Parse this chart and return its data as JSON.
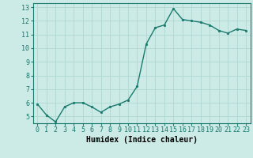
{
  "x": [
    0,
    1,
    2,
    3,
    4,
    5,
    6,
    7,
    8,
    9,
    10,
    11,
    12,
    13,
    14,
    15,
    16,
    17,
    18,
    19,
    20,
    21,
    22,
    23
  ],
  "y": [
    5.9,
    5.1,
    4.6,
    5.7,
    6.0,
    6.0,
    5.7,
    5.3,
    5.7,
    5.9,
    6.2,
    7.2,
    10.3,
    11.5,
    11.7,
    12.9,
    12.1,
    12.0,
    11.9,
    11.7,
    11.3,
    11.1,
    11.4,
    11.3
  ],
  "line_color": "#1a7a6e",
  "bg_color": "#cceae6",
  "grid_color": "#b0d8d4",
  "xlabel": "Humidex (Indice chaleur)",
  "xlim": [
    -0.5,
    23.5
  ],
  "ylim": [
    4.5,
    13.3
  ],
  "yticks": [
    5,
    6,
    7,
    8,
    9,
    10,
    11,
    12,
    13
  ],
  "ytick_labels": [
    "5",
    "6",
    "7",
    "8",
    "9",
    "10",
    "11",
    "12",
    "13"
  ],
  "xticks": [
    0,
    1,
    2,
    3,
    4,
    5,
    6,
    7,
    8,
    9,
    10,
    11,
    12,
    13,
    14,
    15,
    16,
    17,
    18,
    19,
    20,
    21,
    22,
    23
  ],
  "xtick_labels": [
    "0",
    "1",
    "2",
    "3",
    "4",
    "5",
    "6",
    "7",
    "8",
    "9",
    "10",
    "11",
    "12",
    "13",
    "14",
    "15",
    "16",
    "17",
    "18",
    "19",
    "20",
    "21",
    "22",
    "23"
  ],
  "marker": "o",
  "marker_size": 1.8,
  "line_width": 1.0,
  "xlabel_fontsize": 7.0,
  "tick_fontsize": 6.0
}
